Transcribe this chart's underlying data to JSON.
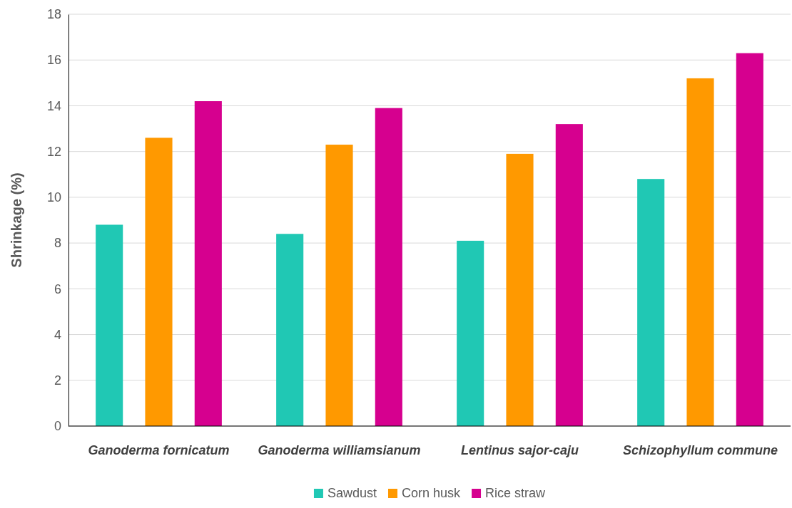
{
  "chart_data": {
    "type": "bar",
    "ylabel": "Shrinkage (%)",
    "categories": [
      "Ganoderma fornicatum",
      "Ganoderma williamsianum",
      "Lentinus sajor-caju",
      "Schizophyllum commune"
    ],
    "series": [
      {
        "name": "Sawdust",
        "color": "#20c8b4",
        "values": [
          8.8,
          8.4,
          8.1,
          10.8
        ]
      },
      {
        "name": "Corn husk",
        "color": "#ff9900",
        "values": [
          12.6,
          12.3,
          11.9,
          15.2
        ]
      },
      {
        "name": "Rice straw",
        "color": "#d6008f",
        "values": [
          14.2,
          13.9,
          13.2,
          16.3
        ]
      }
    ],
    "ylim": [
      0,
      18
    ],
    "yticks": [
      0,
      2,
      4,
      6,
      8,
      10,
      12,
      14,
      16,
      18
    ],
    "grid": "y",
    "legend": "bottom"
  }
}
